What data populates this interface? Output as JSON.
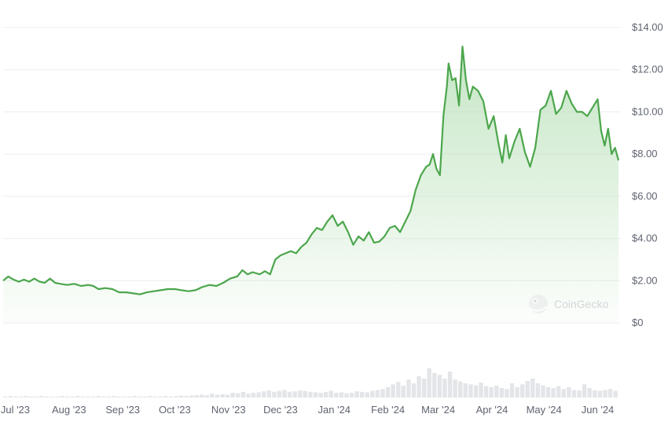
{
  "watermark": {
    "text": "CoinGecko",
    "icon": "coingecko-logo-icon"
  },
  "colors": {
    "line": "#4ca64c",
    "fill_top": "#bfe3bf",
    "volume": "#e3e5e8",
    "grid": "#eceef1",
    "text": "#5f6470"
  },
  "chart_data": {
    "type": "area",
    "title": "",
    "xlabel": "",
    "ylabel": "",
    "ylim": [
      0,
      14
    ],
    "yticks": [
      {
        "value": 14,
        "label": "$14.00"
      },
      {
        "value": 12,
        "label": "$12.00"
      },
      {
        "value": 10,
        "label": "$10.00"
      },
      {
        "value": 8,
        "label": "$8.00"
      },
      {
        "value": 6,
        "label": "$6.00"
      },
      {
        "value": 4,
        "label": "$4.00"
      },
      {
        "value": 2,
        "label": "$2.00"
      },
      {
        "value": 0,
        "label": "$0"
      }
    ],
    "xticks": [
      {
        "date": "2023-07-01",
        "label": "Jul '23"
      },
      {
        "date": "2023-08-01",
        "label": "Aug '23"
      },
      {
        "date": "2023-09-01",
        "label": "Sep '23"
      },
      {
        "date": "2023-10-01",
        "label": "Oct '23"
      },
      {
        "date": "2023-11-01",
        "label": "Nov '23"
      },
      {
        "date": "2023-12-01",
        "label": "Dec '23"
      },
      {
        "date": "2024-01-01",
        "label": "Jan '24"
      },
      {
        "date": "2024-02-01",
        "label": "Feb '24"
      },
      {
        "date": "2024-03-01",
        "label": "Mar '24"
      },
      {
        "date": "2024-04-01",
        "label": "Apr '24"
      },
      {
        "date": "2024-05-01",
        "label": "May '24"
      },
      {
        "date": "2024-06-01",
        "label": "Jun '24"
      }
    ],
    "grid": true,
    "series": [
      {
        "points": [
          [
            "2023-06-24",
            2.0
          ],
          [
            "2023-06-27",
            2.2
          ],
          [
            "2023-06-30",
            2.05
          ],
          [
            "2023-07-03",
            1.95
          ],
          [
            "2023-07-06",
            2.05
          ],
          [
            "2023-07-09",
            1.95
          ],
          [
            "2023-07-12",
            2.1
          ],
          [
            "2023-07-15",
            1.95
          ],
          [
            "2023-07-18",
            1.9
          ],
          [
            "2023-07-21",
            2.1
          ],
          [
            "2023-07-24",
            1.9
          ],
          [
            "2023-07-27",
            1.85
          ],
          [
            "2023-07-31",
            1.8
          ],
          [
            "2023-08-04",
            1.85
          ],
          [
            "2023-08-08",
            1.75
          ],
          [
            "2023-08-12",
            1.8
          ],
          [
            "2023-08-15",
            1.75
          ],
          [
            "2023-08-18",
            1.6
          ],
          [
            "2023-08-22",
            1.65
          ],
          [
            "2023-08-26",
            1.6
          ],
          [
            "2023-08-30",
            1.45
          ],
          [
            "2023-09-03",
            1.45
          ],
          [
            "2023-09-07",
            1.4
          ],
          [
            "2023-09-11",
            1.35
          ],
          [
            "2023-09-15",
            1.45
          ],
          [
            "2023-09-19",
            1.5
          ],
          [
            "2023-09-23",
            1.55
          ],
          [
            "2023-09-27",
            1.6
          ],
          [
            "2023-10-01",
            1.6
          ],
          [
            "2023-10-05",
            1.55
          ],
          [
            "2023-10-09",
            1.5
          ],
          [
            "2023-10-13",
            1.55
          ],
          [
            "2023-10-17",
            1.7
          ],
          [
            "2023-10-21",
            1.8
          ],
          [
            "2023-10-25",
            1.75
          ],
          [
            "2023-10-29",
            1.9
          ],
          [
            "2023-11-02",
            2.1
          ],
          [
            "2023-11-06",
            2.2
          ],
          [
            "2023-11-09",
            2.5
          ],
          [
            "2023-11-12",
            2.3
          ],
          [
            "2023-11-15",
            2.4
          ],
          [
            "2023-11-19",
            2.3
          ],
          [
            "2023-11-22",
            2.45
          ],
          [
            "2023-11-25",
            2.3
          ],
          [
            "2023-11-28",
            3.0
          ],
          [
            "2023-12-01",
            3.2
          ],
          [
            "2023-12-04",
            3.3
          ],
          [
            "2023-12-07",
            3.4
          ],
          [
            "2023-12-10",
            3.3
          ],
          [
            "2023-12-13",
            3.6
          ],
          [
            "2023-12-16",
            3.8
          ],
          [
            "2023-12-19",
            4.2
          ],
          [
            "2023-12-22",
            4.5
          ],
          [
            "2023-12-25",
            4.4
          ],
          [
            "2023-12-28",
            4.8
          ],
          [
            "2023-12-31",
            5.1
          ],
          [
            "2024-01-03",
            4.6
          ],
          [
            "2024-01-06",
            4.8
          ],
          [
            "2024-01-09",
            4.3
          ],
          [
            "2024-01-12",
            3.7
          ],
          [
            "2024-01-15",
            4.1
          ],
          [
            "2024-01-18",
            3.9
          ],
          [
            "2024-01-21",
            4.3
          ],
          [
            "2024-01-24",
            3.8
          ],
          [
            "2024-01-27",
            3.85
          ],
          [
            "2024-01-30",
            4.1
          ],
          [
            "2024-02-02",
            4.5
          ],
          [
            "2024-02-05",
            4.6
          ],
          [
            "2024-02-08",
            4.3
          ],
          [
            "2024-02-11",
            4.8
          ],
          [
            "2024-02-14",
            5.3
          ],
          [
            "2024-02-17",
            6.3
          ],
          [
            "2024-02-20",
            7.0
          ],
          [
            "2024-02-23",
            7.4
          ],
          [
            "2024-02-25",
            7.5
          ],
          [
            "2024-02-27",
            8.0
          ],
          [
            "2024-02-29",
            7.3
          ],
          [
            "2024-03-02",
            7.0
          ],
          [
            "2024-03-04",
            9.8
          ],
          [
            "2024-03-06",
            11.2
          ],
          [
            "2024-03-07",
            12.3
          ],
          [
            "2024-03-09",
            11.5
          ],
          [
            "2024-03-11",
            11.6
          ],
          [
            "2024-03-13",
            10.3
          ],
          [
            "2024-03-15",
            13.1
          ],
          [
            "2024-03-17",
            11.5
          ],
          [
            "2024-03-19",
            10.6
          ],
          [
            "2024-03-21",
            11.2
          ],
          [
            "2024-03-24",
            11.0
          ],
          [
            "2024-03-27",
            10.5
          ],
          [
            "2024-03-30",
            9.2
          ],
          [
            "2024-04-02",
            9.8
          ],
          [
            "2024-04-05",
            8.4
          ],
          [
            "2024-04-07",
            7.6
          ],
          [
            "2024-04-09",
            8.9
          ],
          [
            "2024-04-11",
            7.8
          ],
          [
            "2024-04-14",
            8.6
          ],
          [
            "2024-04-17",
            9.2
          ],
          [
            "2024-04-20",
            8.1
          ],
          [
            "2024-04-23",
            7.4
          ],
          [
            "2024-04-26",
            8.3
          ],
          [
            "2024-04-29",
            10.1
          ],
          [
            "2024-05-02",
            10.3
          ],
          [
            "2024-05-05",
            11.0
          ],
          [
            "2024-05-08",
            9.9
          ],
          [
            "2024-05-11",
            10.2
          ],
          [
            "2024-05-14",
            11.0
          ],
          [
            "2024-05-17",
            10.4
          ],
          [
            "2024-05-20",
            10.0
          ],
          [
            "2024-05-23",
            10.0
          ],
          [
            "2024-05-26",
            9.8
          ],
          [
            "2024-05-29",
            10.2
          ],
          [
            "2024-06-01",
            10.6
          ],
          [
            "2024-06-03",
            9.1
          ],
          [
            "2024-06-05",
            8.4
          ],
          [
            "2024-06-07",
            9.2
          ],
          [
            "2024-06-09",
            8.0
          ],
          [
            "2024-06-11",
            8.3
          ],
          [
            "2024-06-13",
            7.7
          ]
        ]
      }
    ],
    "volume": [
      0.02,
      0.03,
      0.02,
      0.02,
      0.03,
      0.02,
      0.02,
      0.03,
      0.02,
      0.02,
      0.02,
      0.03,
      0.02,
      0.02,
      0.03,
      0.02,
      0.02,
      0.02,
      0.03,
      0.02,
      0.02,
      0.03,
      0.02,
      0.02,
      0.02,
      0.03,
      0.02,
      0.02,
      0.03,
      0.02,
      0.02,
      0.03,
      0.02,
      0.03,
      0.04,
      0.03,
      0.04,
      0.05,
      0.06,
      0.05,
      0.08,
      0.06,
      0.07,
      0.06,
      0.1,
      0.09,
      0.12,
      0.08,
      0.1,
      0.11,
      0.13,
      0.15,
      0.12,
      0.14,
      0.16,
      0.12,
      0.13,
      0.15,
      0.14,
      0.12,
      0.11,
      0.1,
      0.12,
      0.14,
      0.1,
      0.11,
      0.09,
      0.1,
      0.13,
      0.12,
      0.11,
      0.14,
      0.16,
      0.18,
      0.22,
      0.28,
      0.33,
      0.25,
      0.38,
      0.3,
      0.45,
      0.4,
      0.62,
      0.52,
      0.48,
      0.4,
      0.55,
      0.38,
      0.34,
      0.3,
      0.28,
      0.26,
      0.32,
      0.24,
      0.22,
      0.25,
      0.2,
      0.18,
      0.3,
      0.22,
      0.28,
      0.35,
      0.4,
      0.3,
      0.26,
      0.22,
      0.2,
      0.24,
      0.18,
      0.22,
      0.16,
      0.15,
      0.28,
      0.2,
      0.15,
      0.14,
      0.16,
      0.18,
      0.14
    ]
  }
}
